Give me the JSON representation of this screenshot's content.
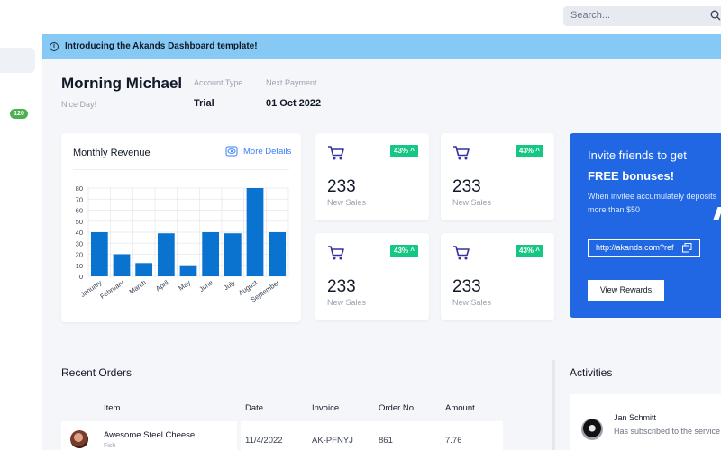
{
  "search": {
    "placeholder": "Search..."
  },
  "sidebar": {
    "badge": "120"
  },
  "banner": {
    "text": "Introducing the Akands Dashboard template!",
    "icon": "info-icon"
  },
  "header": {
    "greeting": "Morning Michael",
    "subtext": "Nice Day!",
    "account_type_label": "Account Type",
    "account_type_value": "Trial",
    "next_payment_label": "Next Payment",
    "next_payment_value": "01 Oct 2022"
  },
  "revenue": {
    "title": "Monthly Revenue",
    "more_label": "More Details"
  },
  "chart_data": {
    "type": "bar",
    "title": "Monthly Revenue",
    "categories": [
      "January",
      "February",
      "March",
      "April",
      "May",
      "June",
      "July",
      "August",
      "September"
    ],
    "values": [
      40,
      20,
      12,
      39,
      10,
      40,
      39,
      80,
      40
    ],
    "ylim": [
      0,
      80
    ],
    "yticks": [
      0,
      10,
      20,
      30,
      40,
      50,
      60,
      70,
      80
    ],
    "grid": true,
    "color": "#0a73d0"
  },
  "stats": [
    {
      "percent": "43%",
      "value": "233",
      "label": "New Sales"
    },
    {
      "percent": "43%",
      "value": "233",
      "label": "New Sales"
    },
    {
      "percent": "43%",
      "value": "233",
      "label": "New Sales"
    },
    {
      "percent": "43%",
      "value": "233",
      "label": "New Sales"
    }
  ],
  "invite": {
    "title_line1": "Invite friends to get",
    "title_line2": "FREE bonuses!",
    "description": "When invitee accumulately deposits more than $50",
    "link": "http://akands.com?ref",
    "button": "View Rewards"
  },
  "orders": {
    "title": "Recent Orders",
    "columns": [
      "Item",
      "Date",
      "Invoice",
      "Order No.",
      "Amount"
    ],
    "rows": [
      {
        "item": "Awesome Steel Cheese",
        "category": "Fish",
        "date": "11/4/2022",
        "invoice": "AK-PFNYJ",
        "order_no": "861",
        "amount": "7.76"
      }
    ]
  },
  "activities": {
    "title": "Activities",
    "items": [
      {
        "name": "Jan Schmitt",
        "text": "Has subscribed to the service"
      }
    ]
  },
  "colors": {
    "accent": "#2167e3",
    "badge_green": "#16c784",
    "banner": "#86c9f5"
  }
}
